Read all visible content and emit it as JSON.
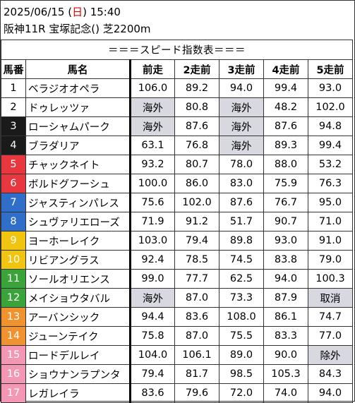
{
  "header": {
    "date_prefix": "2025/06/15 (",
    "weekday": "日",
    "date_suffix": ") 15:40",
    "race": "阪神11R 宝塚記念() 芝2200m"
  },
  "table": {
    "title": "＝＝＝スピード指数表＝＝＝",
    "columns": [
      "馬番",
      "馬名",
      "前走",
      "2走前",
      "3走前",
      "4走前",
      "5走前"
    ],
    "rows": [
      {
        "num": "1",
        "name": "ベラジオオペラ",
        "color": "#ffffff",
        "text": "#000000",
        "vals": [
          "106.0",
          "89.2",
          "94.0",
          "99.4",
          "93.0"
        ],
        "gray": [
          false,
          false,
          false,
          false,
          false
        ]
      },
      {
        "num": "2",
        "name": "ドゥレッツァ",
        "color": "#ffffff",
        "text": "#000000",
        "vals": [
          "海外",
          "80.8",
          "海外",
          "48.2",
          "102.0"
        ],
        "gray": [
          true,
          false,
          true,
          false,
          false
        ]
      },
      {
        "num": "3",
        "name": "ローシャムパーク",
        "color": "#1a1a1a",
        "text": "#ffffff",
        "vals": [
          "海外",
          "87.6",
          "海外",
          "87.6",
          "94.8"
        ],
        "gray": [
          true,
          false,
          true,
          false,
          false
        ]
      },
      {
        "num": "4",
        "name": "ブラダリア",
        "color": "#1a1a1a",
        "text": "#ffffff",
        "vals": [
          "63.1",
          "76.8",
          "海外",
          "89.3",
          "99.4"
        ],
        "gray": [
          false,
          false,
          true,
          false,
          false
        ]
      },
      {
        "num": "5",
        "name": "チャックネイト",
        "color": "#e8373e",
        "text": "#ffffff",
        "vals": [
          "93.2",
          "80.7",
          "78.0",
          "88.0",
          "53.2"
        ],
        "gray": [
          false,
          false,
          false,
          false,
          false
        ]
      },
      {
        "num": "6",
        "name": "ボルドグフーシュ",
        "color": "#e8373e",
        "text": "#ffffff",
        "vals": [
          "100.0",
          "86.0",
          "83.0",
          "75.9",
          "76.3"
        ],
        "gray": [
          false,
          false,
          false,
          false,
          false
        ]
      },
      {
        "num": "7",
        "name": "ジャスティンパレス",
        "color": "#2f6fc9",
        "text": "#ffffff",
        "vals": [
          "75.6",
          "102.0",
          "87.6",
          "76.7",
          "95.0"
        ],
        "gray": [
          false,
          false,
          false,
          false,
          false
        ]
      },
      {
        "num": "8",
        "name": "シュヴァリエローズ",
        "color": "#2f6fc9",
        "text": "#ffffff",
        "vals": [
          "71.9",
          "91.2",
          "51.7",
          "90.7",
          "71.0"
        ],
        "gray": [
          false,
          false,
          false,
          false,
          false
        ]
      },
      {
        "num": "9",
        "name": "ヨーホーレイク",
        "color": "#f1c40f",
        "text": "#ffffff",
        "vals": [
          "103.0",
          "79.4",
          "89.8",
          "93.0",
          "91.0"
        ],
        "gray": [
          false,
          false,
          false,
          false,
          false
        ]
      },
      {
        "num": "10",
        "name": "リビアングラス",
        "color": "#f1c40f",
        "text": "#ffffff",
        "vals": [
          "92.4",
          "78.5",
          "74.5",
          "83.8",
          "79.0"
        ],
        "gray": [
          false,
          false,
          false,
          false,
          false
        ]
      },
      {
        "num": "11",
        "name": "ソールオリエンス",
        "color": "#3aa33a",
        "text": "#ffffff",
        "vals": [
          "99.0",
          "77.7",
          "62.5",
          "94.0",
          "100.3"
        ],
        "gray": [
          false,
          false,
          false,
          false,
          false
        ]
      },
      {
        "num": "12",
        "name": "メイショウタバル",
        "color": "#3aa33a",
        "text": "#ffffff",
        "vals": [
          "海外",
          "87.0",
          "73.3",
          "87.9",
          "取消"
        ],
        "gray": [
          true,
          false,
          false,
          false,
          true
        ]
      },
      {
        "num": "13",
        "name": "アーバンシック",
        "color": "#f0922e",
        "text": "#ffffff",
        "vals": [
          "94.4",
          "83.6",
          "108.0",
          "86.1",
          "74.7"
        ],
        "gray": [
          false,
          false,
          false,
          false,
          false
        ]
      },
      {
        "num": "14",
        "name": "ジューンテイク",
        "color": "#f0922e",
        "text": "#ffffff",
        "vals": [
          "75.8",
          "87.0",
          "75.5",
          "83.3",
          "77.0"
        ],
        "gray": [
          false,
          false,
          false,
          false,
          false
        ]
      },
      {
        "num": "15",
        "name": "ロードデルレイ",
        "color": "#f497b4",
        "text": "#ffffff",
        "vals": [
          "104.0",
          "106.1",
          "89.0",
          "90.0",
          "除外"
        ],
        "gray": [
          false,
          false,
          false,
          false,
          true
        ]
      },
      {
        "num": "16",
        "name": "ショウナンラプンタ",
        "color": "#f497b4",
        "text": "#ffffff",
        "vals": [
          "79.4",
          "81.7",
          "98.5",
          "105.3",
          "84.3"
        ],
        "gray": [
          false,
          false,
          false,
          false,
          false
        ]
      },
      {
        "num": "17",
        "name": "レガレイラ",
        "color": "#f497b4",
        "text": "#ffffff",
        "vals": [
          "83.6",
          "79.6",
          "72.0",
          "74.0",
          "94.0"
        ],
        "gray": [
          false,
          false,
          false,
          false,
          false
        ]
      }
    ]
  }
}
